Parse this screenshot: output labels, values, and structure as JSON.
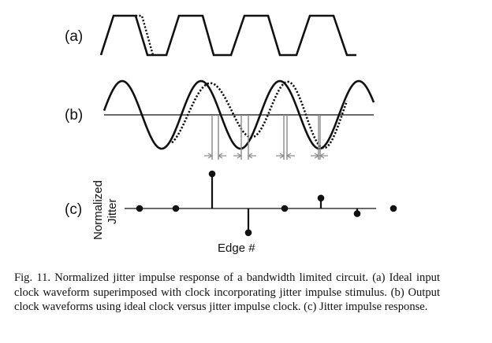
{
  "panels": {
    "a_label": "(a)",
    "b_label": "(b)",
    "c_label": "(c)"
  },
  "axes": {
    "y_label_line1": "Normalized",
    "y_label_line2": "Jitter",
    "x_label": "Edge #"
  },
  "caption": "Fig. 11.   Normalized jitter impulse response of a bandwidth limited circuit. (a) Ideal input clock waveform superimposed with clock incorporating jitter impulse stimulus. (b) Output clock waveforms using ideal clock versus jitter impulse clock. (c) Jitter impulse response.",
  "chart_data": {
    "type": "scatter",
    "title": "",
    "xlabel": "Edge #",
    "ylabel": "Normalized Jitter",
    "x": [
      1,
      2,
      3,
      4,
      5,
      6,
      7,
      8
    ],
    "values": [
      0,
      0,
      1.0,
      -0.7,
      0,
      0.3,
      -0.15,
      0
    ]
  }
}
